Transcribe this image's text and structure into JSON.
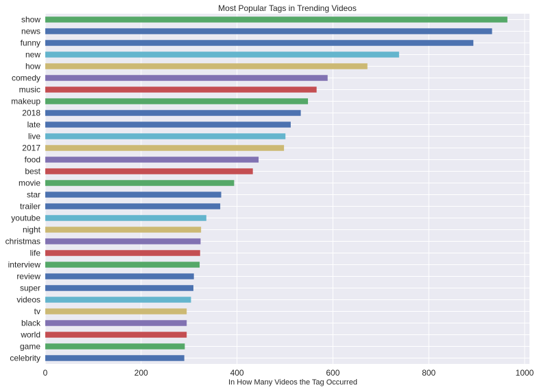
{
  "chart_data": {
    "type": "bar",
    "orientation": "horizontal",
    "title": "Most Popular Tags in Trending Videos",
    "xlabel": "In How Many Videos the Tag Occurred",
    "ylabel": "",
    "xlim": [
      0,
      1010
    ],
    "xticks": [
      0,
      200,
      400,
      600,
      800,
      1000
    ],
    "grid": true,
    "legend": "none",
    "background": "#EAEAF2",
    "colors": [
      "#55A868",
      "#4C72B0",
      "#4C72B0",
      "#64B5CD",
      "#CCB974",
      "#8172B2",
      "#C44E52"
    ],
    "categories": [
      "show",
      "news",
      "funny",
      "new",
      "how",
      "comedy",
      "music",
      "makeup",
      "2018",
      "late",
      "live",
      "2017",
      "food",
      "best",
      "movie",
      "star",
      "trailer",
      "youtube",
      "night",
      "christmas",
      "life",
      "interview",
      "review",
      "super",
      "videos",
      "tv",
      "black",
      "world",
      "game",
      "celebrity"
    ],
    "values": [
      964,
      932,
      893,
      738,
      672,
      589,
      566,
      548,
      533,
      512,
      501,
      498,
      445,
      433,
      394,
      367,
      365,
      336,
      325,
      324,
      323,
      322,
      310,
      309,
      304,
      295,
      295,
      295,
      291,
      290
    ]
  }
}
